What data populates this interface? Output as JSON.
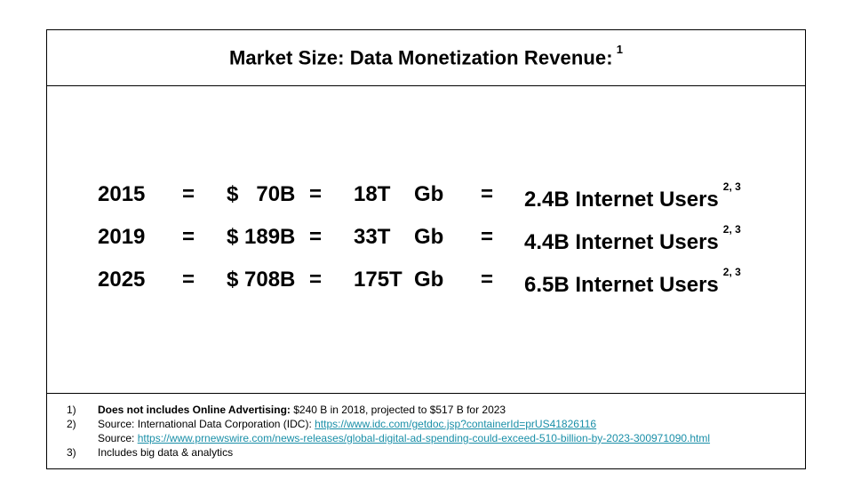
{
  "title": "Market Size: Data Monetization Revenue:",
  "title_footnote": "1",
  "rows": [
    {
      "year": "2015",
      "eq1": "=",
      "revenue": "$   70B",
      "eq2": "=",
      "data": "18T",
      "unit": "Gb",
      "eq3": "=",
      "users": "2.4B Internet Users",
      "footnote": "2, 3"
    },
    {
      "year": "2019",
      "eq1": "=",
      "revenue": "$ 189B",
      "eq2": "=",
      "data": "33T",
      "unit": "Gb",
      "eq3": "=",
      "users": "4.4B Internet Users",
      "footnote": "2, 3"
    },
    {
      "year": "2025",
      "eq1": "=",
      "revenue": "$ 708B",
      "eq2": "=",
      "data": "175T",
      "unit": "Gb",
      "eq3": "=",
      "users": "6.5B Internet Users",
      "footnote": "2, 3"
    }
  ],
  "notes": {
    "n1": {
      "num": "1)",
      "bold": "Does not includes Online Advertising:",
      "text": " $240 B in 2018, projected to $517 B for 2023"
    },
    "n2": {
      "num": "2)",
      "prefix": "Source: International Data Corporation (IDC): ",
      "link": "https://www.idc.com/getdoc.jsp?containerId=prUS41826116"
    },
    "n2b": {
      "prefix": "Source: ",
      "link": "https://www.prnewswire.com/news-releases/global-digital-ad-spending-could-exceed-510-billion-by-2023-300971090.html"
    },
    "n3": {
      "num": "3)",
      "text": "Includes big data & analytics"
    }
  },
  "colors": {
    "link": "#1a8fa8",
    "border": "#000000"
  }
}
